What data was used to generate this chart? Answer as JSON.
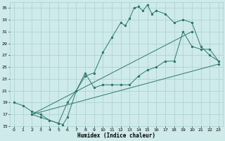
{
  "bg_color": "#ceeaea",
  "grid_color": "#aacfcf",
  "line_color": "#2d7a6a",
  "xlabel": "Humidex (Indice chaleur)",
  "ylim": [
    15,
    36
  ],
  "xlim": [
    -0.5,
    23.5
  ],
  "yticks": [
    15,
    17,
    19,
    21,
    23,
    25,
    27,
    29,
    31,
    33,
    35
  ],
  "xticks": [
    0,
    1,
    2,
    3,
    4,
    5,
    6,
    7,
    8,
    9,
    10,
    11,
    12,
    13,
    14,
    15,
    16,
    17,
    18,
    19,
    20,
    21,
    22,
    23
  ],
  "series1_x": [
    0,
    1,
    2,
    3,
    4,
    5,
    5.5,
    6,
    7,
    8,
    9,
    10,
    11,
    12,
    12.5,
    13,
    13.5,
    14,
    14.5,
    15,
    15.5,
    16,
    17,
    18,
    19,
    20,
    21,
    22,
    23
  ],
  "series1_y": [
    19,
    18.5,
    17.5,
    17,
    16,
    15.5,
    15.3,
    16.5,
    21,
    23.5,
    24,
    27.5,
    30,
    32.5,
    32,
    33.2,
    35,
    35.2,
    34.5,
    35.5,
    34,
    34.5,
    34,
    32.5,
    33,
    32.5,
    28.5,
    27,
    26
  ],
  "series2_x": [
    2,
    3,
    4,
    5,
    6,
    7,
    8,
    9,
    10,
    11,
    12,
    13,
    14,
    15,
    16,
    17,
    18,
    19,
    20,
    21,
    22,
    23
  ],
  "series2_y": [
    17,
    16.5,
    16,
    15.5,
    19,
    21,
    24,
    21.5,
    22,
    22,
    22,
    22,
    23.5,
    24.5,
    25,
    26,
    26,
    31,
    28.5,
    28,
    28,
    26
  ],
  "series3_x": [
    2,
    23
  ],
  "series3_y": [
    17,
    25.5
  ],
  "series4_x": [
    2,
    20
  ],
  "series4_y": [
    17,
    31
  ]
}
